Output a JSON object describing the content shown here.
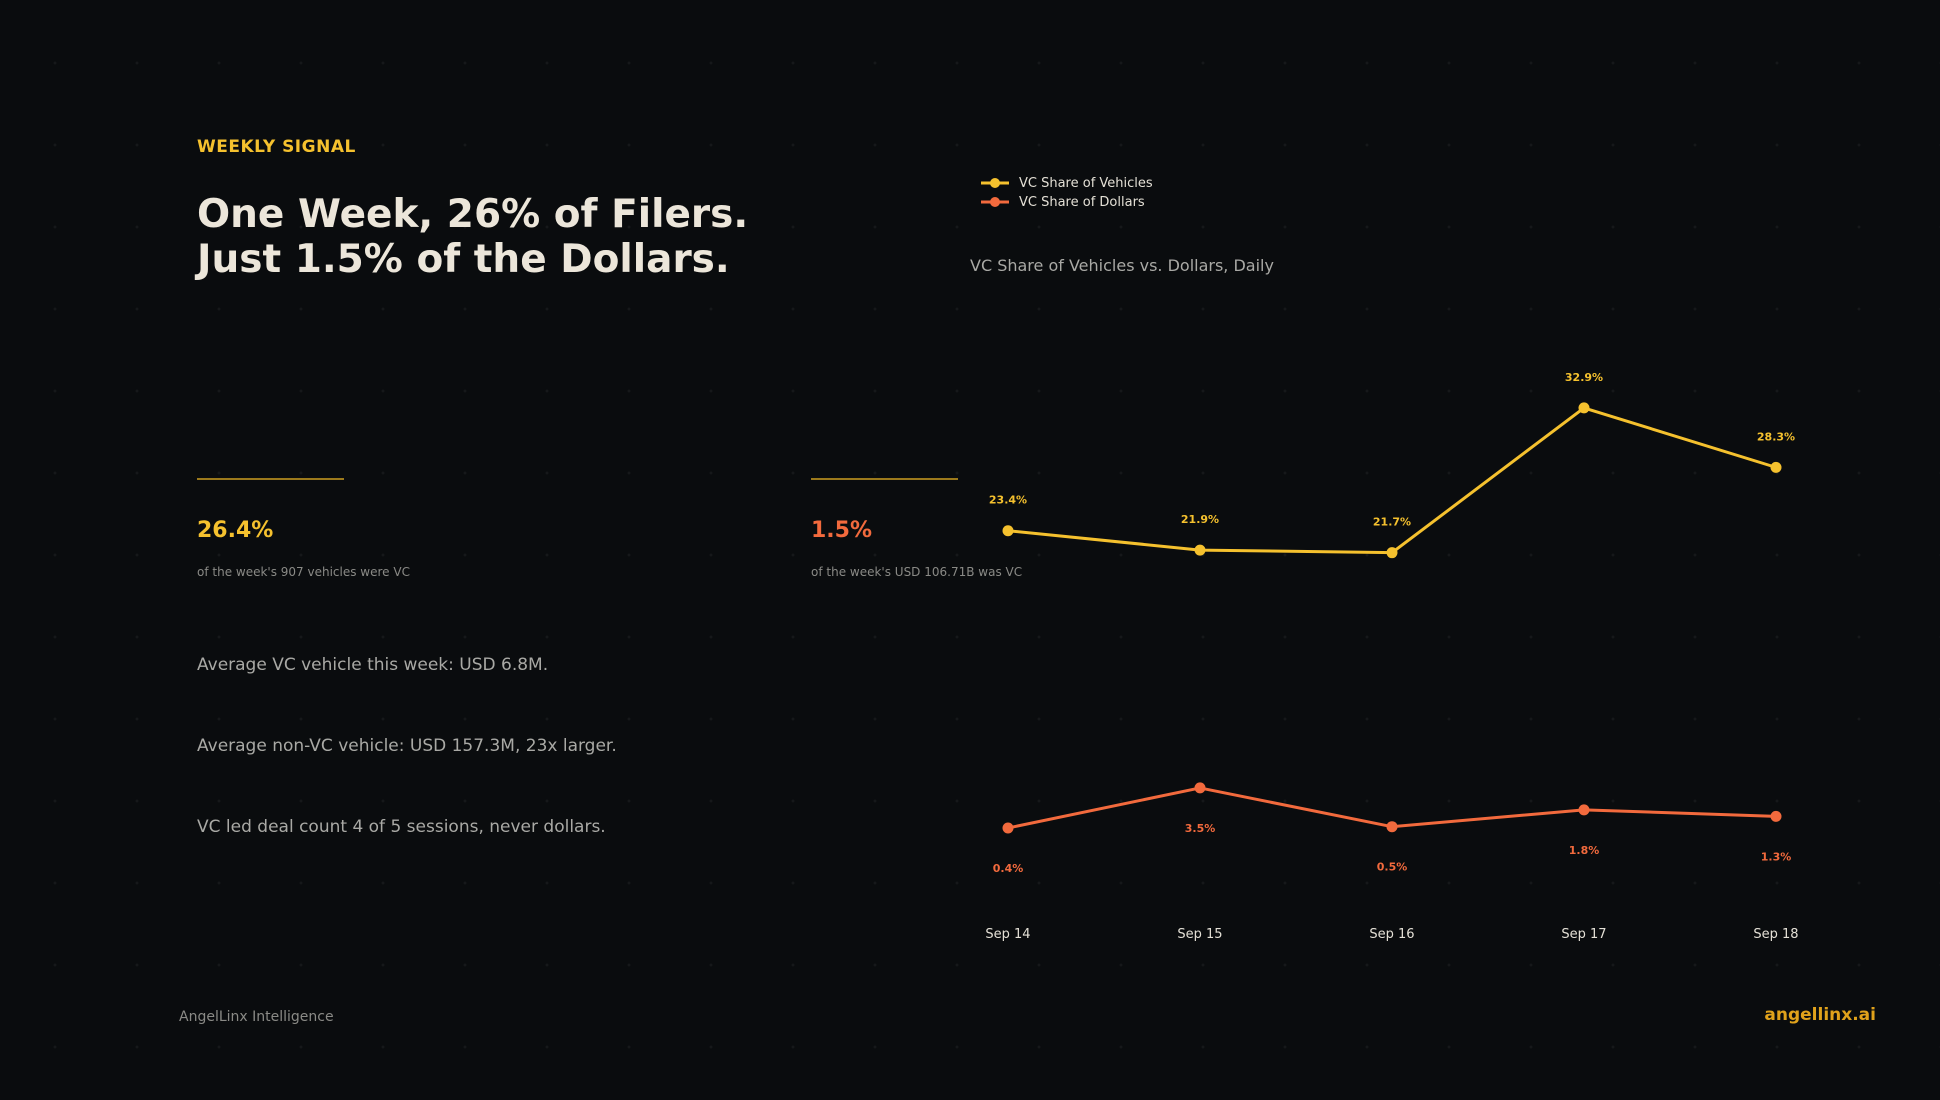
{
  "header": {
    "eyebrow": "WEEKLY SIGNAL",
    "headline_line1": "One Week, 26% of Filers.",
    "headline_line2": "Just 1.5% of the Dollars."
  },
  "stats": [
    {
      "value": "26.4%",
      "caption": "of the week's 907 vehicles were VC"
    },
    {
      "value": "1.5%",
      "caption": "of the week's USD 106.71B was VC"
    }
  ],
  "bullets": [
    "Average VC vehicle this week: USD 6.8M.",
    "Average non-VC vehicle: USD 157.3M, 23x larger.",
    "VC led deal count 4 of 5 sessions, never dollars."
  ],
  "footer": {
    "left": "AngelLinx Intelligence",
    "right": "angellinx.ai"
  },
  "colors": {
    "gold": "#f5c12e",
    "orange": "#f26a3d",
    "rule": "#9c7a1c",
    "brand": "#e0a21b"
  },
  "chart_data": {
    "type": "line",
    "title": "VC Share of Vehicles vs. Dollars, Daily",
    "categories": [
      "Sep 14",
      "Sep 15",
      "Sep 16",
      "Sep 17",
      "Sep 18"
    ],
    "series": [
      {
        "name": "VC Share of Vehicles",
        "values": [
          23.4,
          21.9,
          21.7,
          32.9,
          28.3
        ],
        "labels": [
          "23.4%",
          "21.9%",
          "21.7%",
          "32.9%",
          "28.3%"
        ],
        "color": "#f5c12e",
        "label_position": "above"
      },
      {
        "name": "VC Share of Dollars",
        "values": [
          0.4,
          3.5,
          0.5,
          1.8,
          1.3
        ],
        "labels": [
          "0.4%",
          "3.5%",
          "0.5%",
          "1.8%",
          "1.3%"
        ],
        "color": "#f26a3d",
        "label_position": "below"
      }
    ],
    "ylim": [
      -2,
      38
    ],
    "grid": false,
    "legend_position": "top-left",
    "xlabel": "",
    "ylabel": ""
  }
}
